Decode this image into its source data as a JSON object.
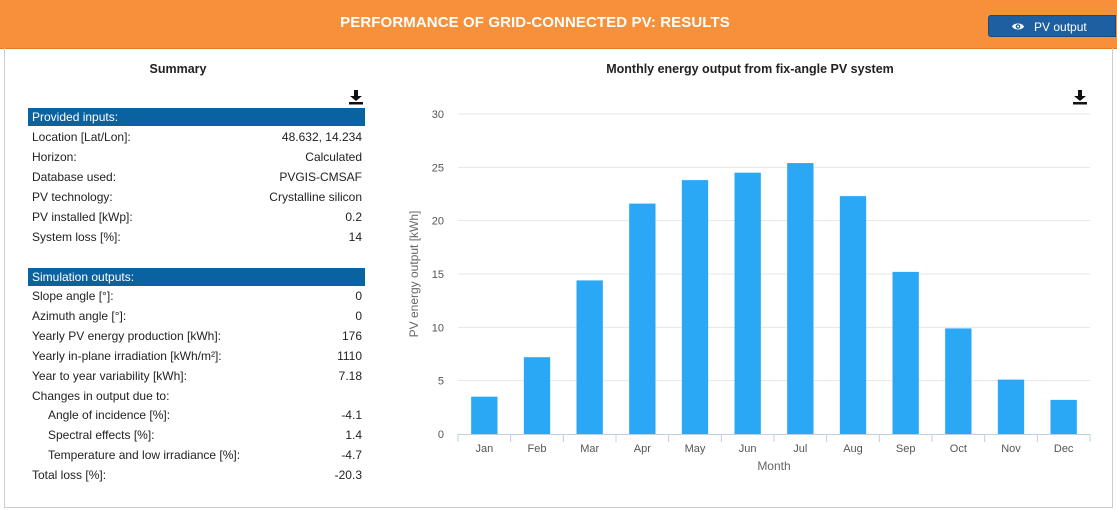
{
  "header": {
    "title": "PERFORMANCE OF GRID-CONNECTED PV: RESULTS",
    "pv_output_button": "PV output"
  },
  "summary": {
    "title": "Summary",
    "inputs_heading": "Provided inputs:",
    "inputs": [
      {
        "label": "Location [Lat/Lon]:",
        "value": "48.632, 14.234"
      },
      {
        "label": "Horizon:",
        "value": "Calculated"
      },
      {
        "label": "Database used:",
        "value": "PVGIS-CMSAF"
      },
      {
        "label": "PV technology:",
        "value": "Crystalline silicon"
      },
      {
        "label": "PV installed [kWp]:",
        "value": "0.2"
      },
      {
        "label": "System loss [%]:",
        "value": "14"
      }
    ],
    "outputs_heading": "Simulation outputs:",
    "outputs": [
      {
        "label": "Slope angle [°]:",
        "value": "0"
      },
      {
        "label": "Azimuth angle [°]:",
        "value": "0"
      },
      {
        "label": "Yearly PV energy production [kWh]:",
        "value": "176"
      },
      {
        "label": "Yearly in-plane irradiation [kWh/m²]:",
        "value": "1110"
      },
      {
        "label": "Year to year variability [kWh]:",
        "value": "7.18"
      },
      {
        "label": "Changes in output due to:",
        "value": ""
      },
      {
        "label": "Angle of incidence [%]:",
        "value": "-4.1"
      },
      {
        "label": "Spectral effects [%]:",
        "value": "1.4"
      },
      {
        "label": "Temperature and low irradiance [%]:",
        "value": "-4.7"
      },
      {
        "label": "Total loss [%]:",
        "value": "-20.3"
      }
    ]
  },
  "colors": {
    "header_bg": "#f7903a",
    "section_bg": "#0a63a0",
    "bar": "#2aa7f5"
  },
  "icons": {
    "summary_download": "download-icon",
    "chart_download": "download-icon",
    "pv_output": "eye-icon"
  },
  "chart_data": {
    "type": "bar",
    "title": "Monthly energy output from fix-angle PV system",
    "xlabel": "Month",
    "ylabel": "PV energy output [kWh]",
    "ylim": [
      0,
      30
    ],
    "yticks": [
      0,
      5,
      10,
      15,
      20,
      25,
      30
    ],
    "grid": true,
    "categories": [
      "Jan",
      "Feb",
      "Mar",
      "Apr",
      "May",
      "Jun",
      "Jul",
      "Aug",
      "Sep",
      "Oct",
      "Nov",
      "Dec"
    ],
    "values": [
      3.5,
      7.2,
      14.4,
      21.6,
      23.8,
      24.5,
      25.4,
      22.3,
      15.2,
      9.9,
      5.1,
      3.2
    ]
  }
}
